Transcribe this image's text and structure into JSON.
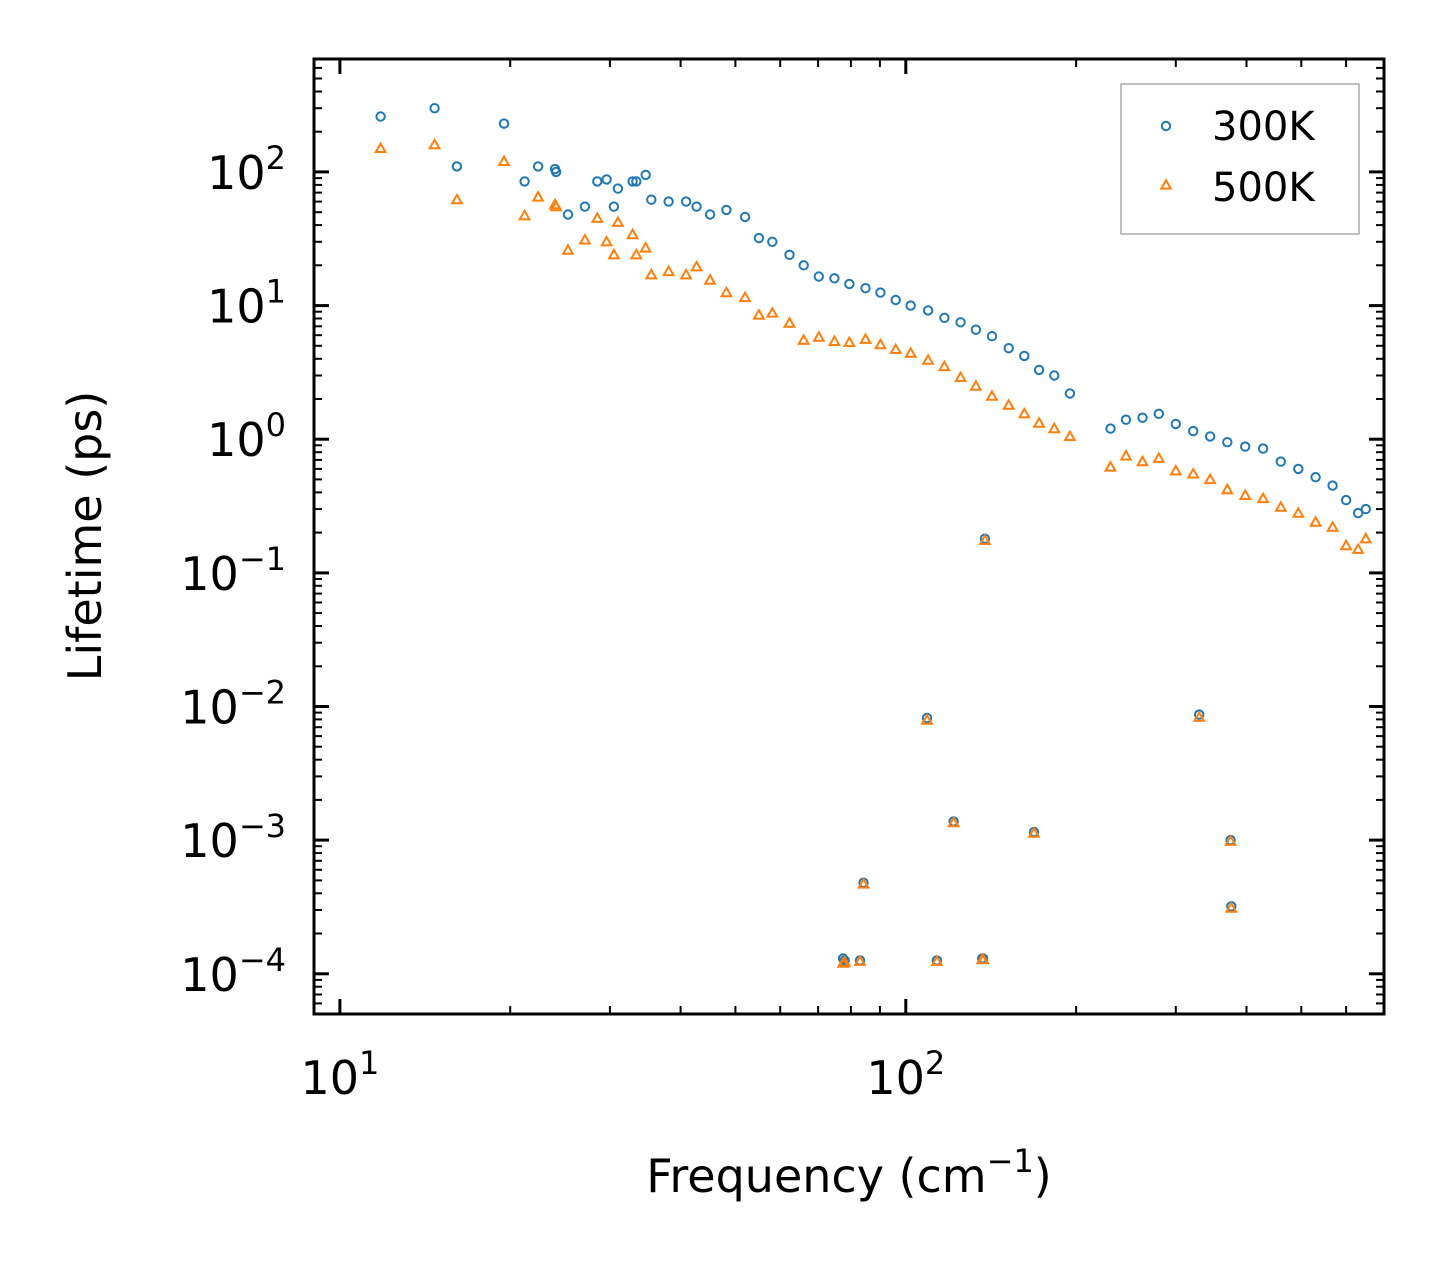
{
  "chart_data": {
    "type": "scatter",
    "xscale": "log",
    "yscale": "log",
    "xlabel": "Frequency (cm",
    "xlabel_sup": "−1",
    "xlabel_suffix": ")",
    "ylabel": "Lifetime (ps)",
    "xlim": [
      9,
      700
    ],
    "ylim": [
      5e-05,
      700
    ],
    "x_ticks": [
      {
        "value": 10,
        "base": "10",
        "exp": "1"
      },
      {
        "value": 100,
        "base": "10",
        "exp": "2"
      }
    ],
    "y_ticks": [
      {
        "value": 100,
        "base": "10",
        "exp": "2"
      },
      {
        "value": 10,
        "base": "10",
        "exp": "1"
      },
      {
        "value": 1,
        "base": "10",
        "exp": "0"
      },
      {
        "value": 0.1,
        "base": "10",
        "exp": "−1"
      },
      {
        "value": 0.01,
        "base": "10",
        "exp": "−2"
      },
      {
        "value": 0.001,
        "base": "10",
        "exp": "−3"
      },
      {
        "value": 0.0001,
        "base": "10",
        "exp": "−4"
      }
    ],
    "legend_position": "top-right",
    "series": [
      {
        "name": "300K",
        "color": "#1f77b4",
        "marker": "circle",
        "x": [
          11.8,
          14.7,
          16.1,
          19.5,
          21.2,
          22.4,
          24.0,
          24.1,
          25.3,
          27.1,
          28.5,
          29.6,
          30.5,
          31.0,
          32.9,
          33.4,
          34.7,
          35.5,
          38.1,
          40.9,
          42.7,
          45.1,
          48.2,
          52.0,
          55.0,
          58.1,
          62.3,
          66.0,
          70.2,
          74.8,
          79.5,
          84.9,
          90.2,
          96.0,
          102.0,
          109.5,
          117.0,
          125.0,
          133.0,
          142.0,
          152.0,
          162.0,
          172.0,
          183.0,
          195.0,
          230.0,
          245.0,
          262.0,
          280.0,
          300.0,
          322.0,
          345.0,
          370.0,
          398.0,
          428.0,
          460.0,
          494.0,
          530.0,
          568.0,
          600.0,
          630.0,
          650.0,
          77.5,
          84.2,
          109.0,
          121.5,
          138.0,
          137.0,
          113.5,
          136.5,
          168.5,
          330.0,
          375.0,
          376.0,
          83.0,
          78.0
        ],
        "y": [
          260,
          300,
          110,
          230,
          85,
          110,
          105,
          100,
          48,
          55,
          85,
          88,
          55,
          75,
          85,
          85,
          95,
          62,
          60,
          60,
          55,
          48,
          52,
          46,
          32,
          30,
          24,
          20,
          16.5,
          16,
          14.5,
          13.5,
          12.5,
          11,
          10,
          9.2,
          8.1,
          7.5,
          6.6,
          5.9,
          4.8,
          4.2,
          3.3,
          3.0,
          2.2,
          1.2,
          1.4,
          1.45,
          1.55,
          1.3,
          1.15,
          1.05,
          0.95,
          0.88,
          0.85,
          0.68,
          0.6,
          0.52,
          0.45,
          0.35,
          0.28,
          0.3,
          0.00013,
          0.00048,
          0.0082,
          0.00138,
          0.18,
          0.00013,
          0.000126,
          0.00013,
          0.00115,
          0.0087,
          0.001,
          0.00032,
          0.000126,
          0.000126
        ]
      },
      {
        "name": "500K",
        "color": "#ff7f0e",
        "marker": "triangle",
        "x": [
          11.8,
          14.7,
          16.1,
          19.5,
          21.2,
          22.4,
          24.0,
          24.1,
          25.3,
          27.1,
          28.5,
          29.6,
          30.5,
          31.0,
          32.9,
          33.4,
          34.7,
          35.5,
          38.1,
          40.9,
          42.7,
          45.1,
          48.2,
          52.0,
          55.0,
          58.1,
          62.3,
          66.0,
          70.2,
          74.8,
          79.5,
          84.9,
          90.2,
          96.0,
          102.0,
          109.5,
          117.0,
          125.0,
          133.0,
          142.0,
          152.0,
          162.0,
          172.0,
          183.0,
          195.0,
          230.0,
          245.0,
          262.0,
          280.0,
          300.0,
          322.0,
          345.0,
          370.0,
          398.0,
          428.0,
          460.0,
          494.0,
          530.0,
          568.0,
          600.0,
          630.0,
          650.0,
          77.5,
          84.2,
          109.0,
          121.5,
          138.0,
          137.0,
          113.5,
          136.5,
          168.5,
          330.0,
          375.0,
          376.0,
          83.0,
          78.0
        ],
        "y": [
          150,
          160,
          62,
          120,
          47,
          65,
          57,
          55,
          26,
          31,
          45,
          30,
          24,
          42,
          34,
          24,
          27,
          17,
          18,
          17,
          19.5,
          15.5,
          12.5,
          11.5,
          8.5,
          8.8,
          7.4,
          5.5,
          5.8,
          5.4,
          5.3,
          5.6,
          5.1,
          4.7,
          4.4,
          3.9,
          3.5,
          2.9,
          2.5,
          2.1,
          1.8,
          1.55,
          1.32,
          1.2,
          1.05,
          0.62,
          0.75,
          0.68,
          0.72,
          0.58,
          0.55,
          0.5,
          0.42,
          0.38,
          0.36,
          0.31,
          0.28,
          0.24,
          0.22,
          0.16,
          0.15,
          0.18,
          0.00012,
          0.00047,
          0.0079,
          0.00135,
          0.175,
          0.000128,
          0.000124,
          0.000128,
          0.00113,
          0.0083,
          0.00098,
          0.00031,
          0.000124,
          0.000122
        ]
      }
    ]
  }
}
